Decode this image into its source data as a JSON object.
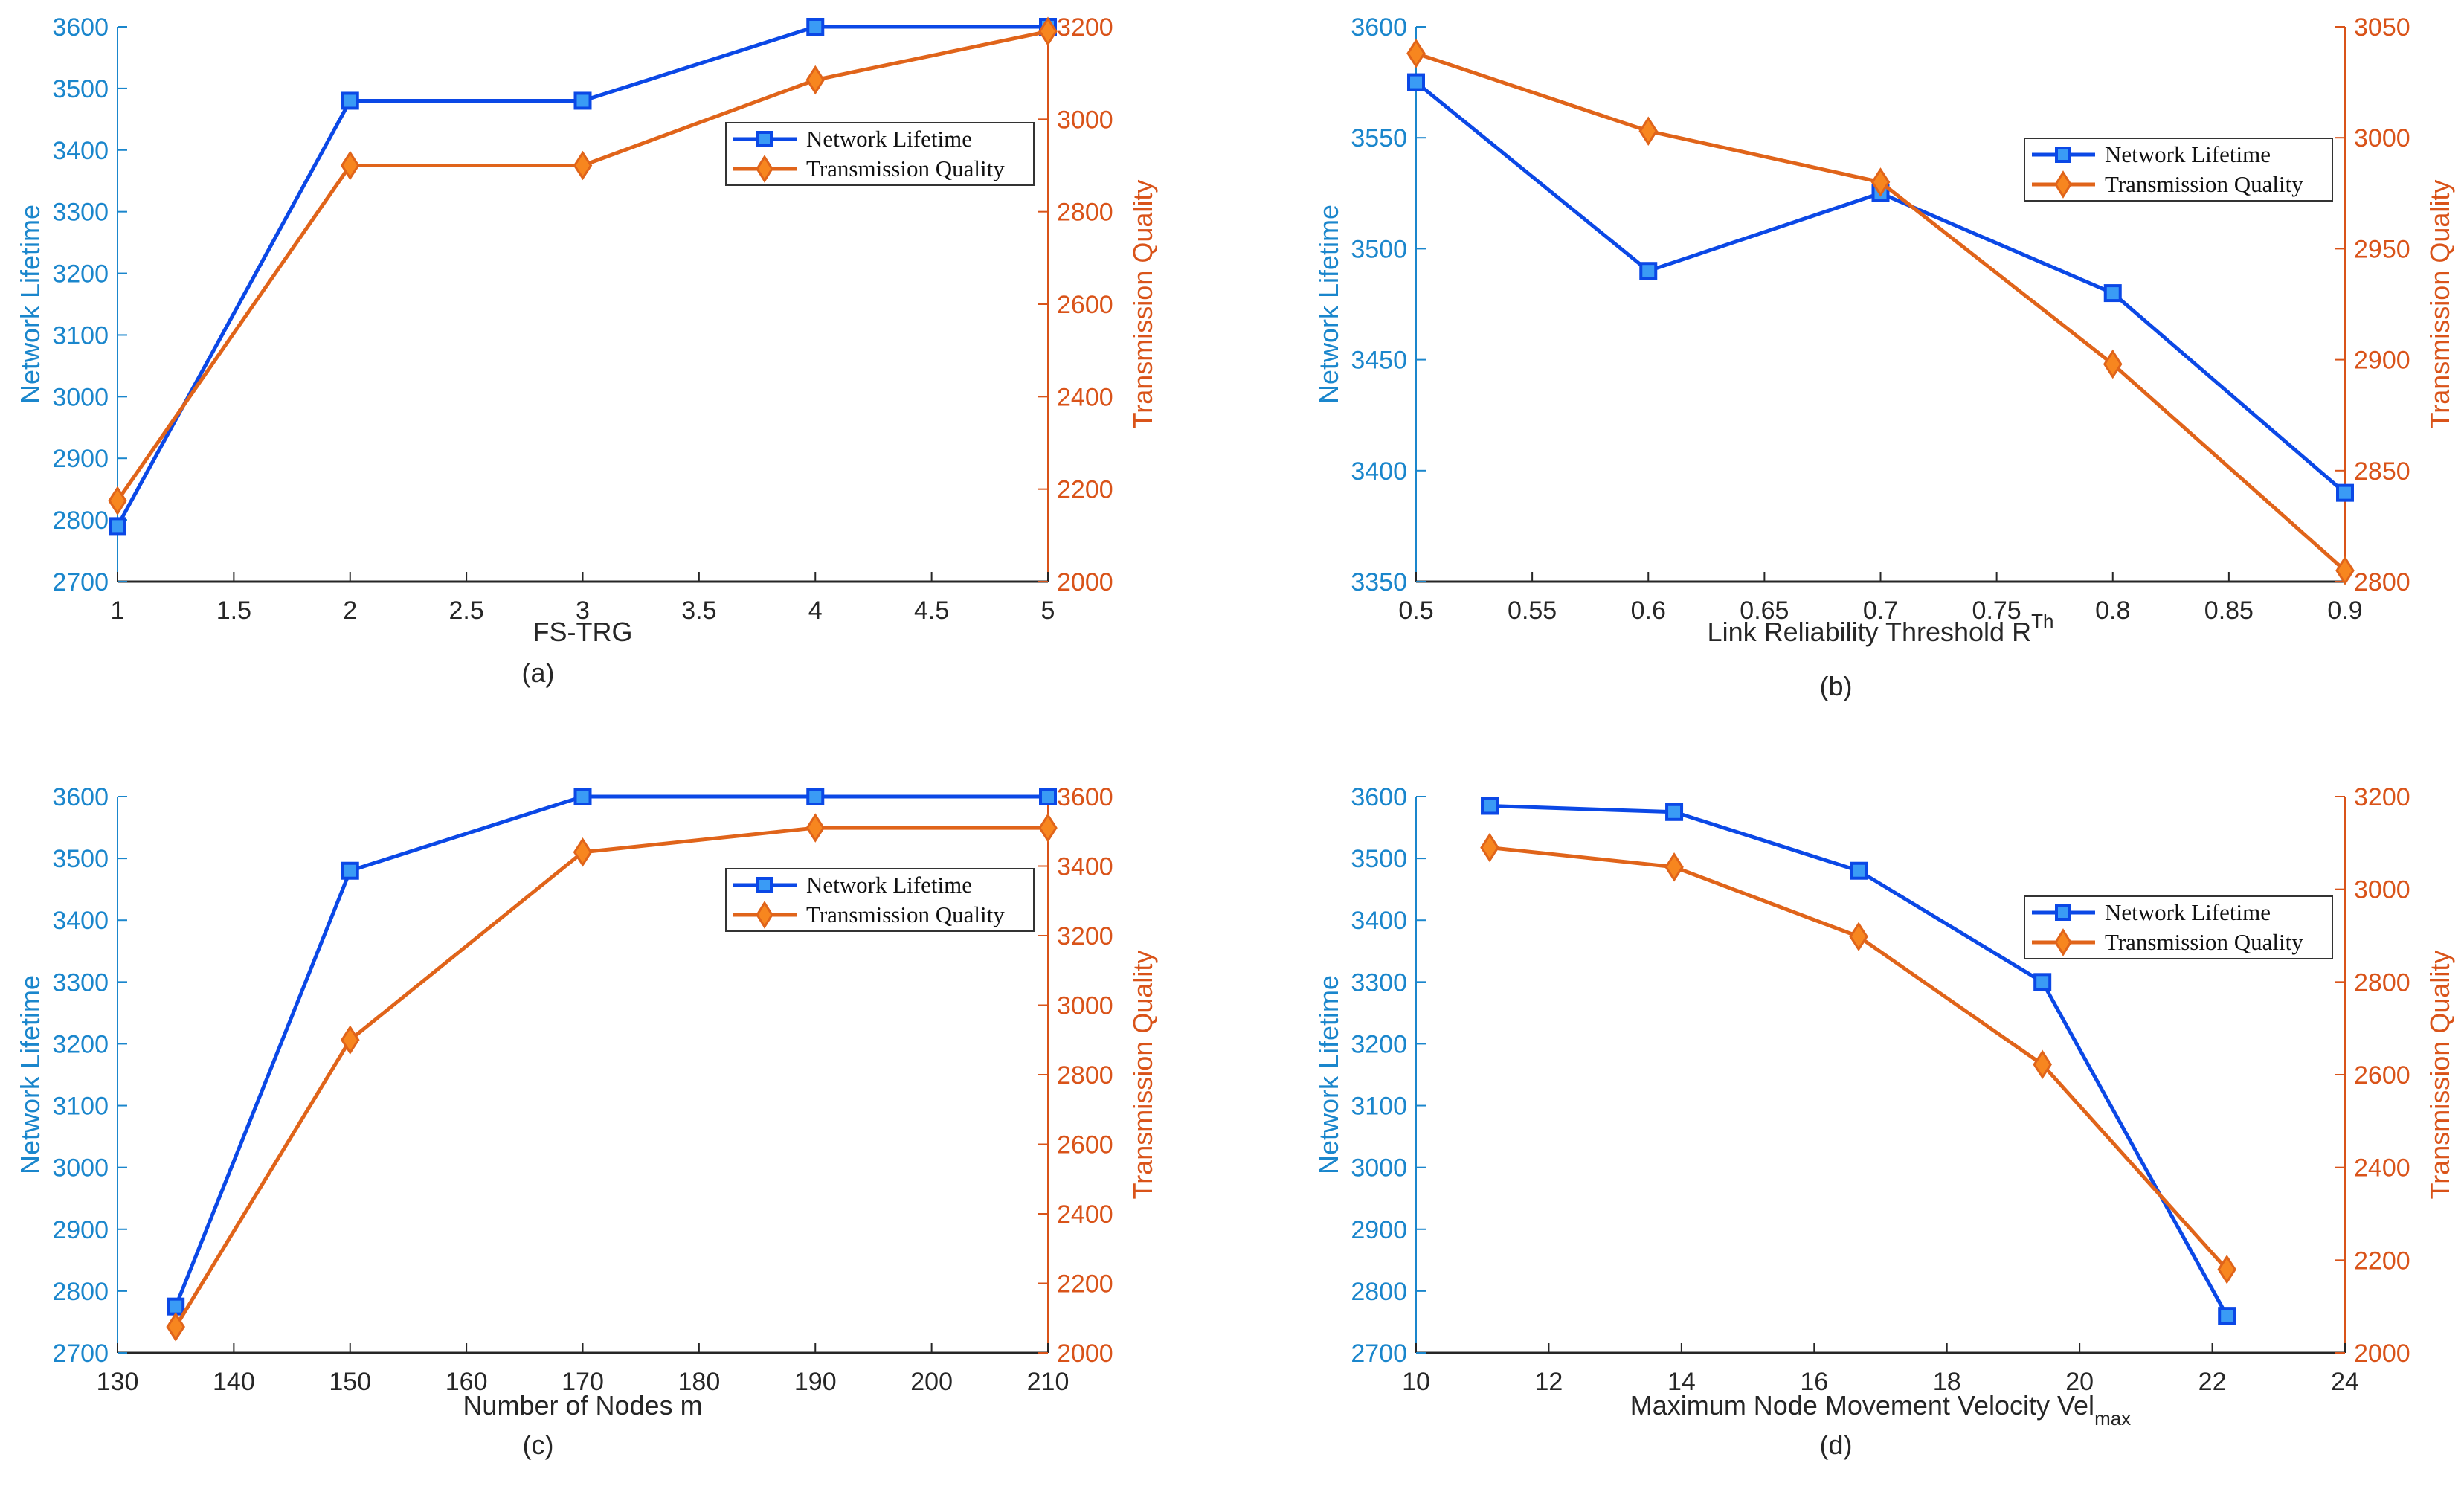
{
  "colors": {
    "left_axis": "#1a86cc",
    "right_axis": "#d95319",
    "nl_line": "#0b48e6",
    "nl_marker": "#3a9bf5",
    "tq_line": "#e0641a",
    "tq_marker": "#f7861f",
    "x_axis": "#262626"
  },
  "chart_data": [
    {
      "type": "line",
      "panel_label": "(a)",
      "xlabel": "FS-TRG",
      "xlabel_sup": "",
      "xlabel_sub": "",
      "ylabel_left": "Network Lifetime",
      "ylabel_right": "Transmission Quality",
      "xlim": [
        1,
        5
      ],
      "ylim_left": [
        2700,
        3600
      ],
      "ylim_right": [
        2000,
        3200
      ],
      "x_ticks": [
        "1",
        "1.5",
        "2",
        "2.5",
        "3",
        "3.5",
        "4",
        "4.5",
        "5"
      ],
      "y_left_ticks": [
        "2700",
        "2800",
        "2900",
        "3000",
        "3100",
        "3200",
        "3300",
        "3400",
        "3500",
        "3600"
      ],
      "y_right_ticks": [
        "2000",
        "2200",
        "2400",
        "2600",
        "2800",
        "3000",
        "3200"
      ],
      "legend": [
        "Network Lifetime",
        "Transmission Quality"
      ],
      "legend_position": "upper-right",
      "x": [
        1,
        2,
        3,
        4,
        5
      ],
      "series": [
        {
          "name": "Network Lifetime",
          "axis": "left",
          "marker": "square",
          "values": [
            2790,
            3480,
            3480,
            3600,
            3600
          ]
        },
        {
          "name": "Transmission Quality",
          "axis": "right",
          "marker": "diamond",
          "values": [
            2175,
            2900,
            2900,
            3085,
            3190
          ]
        }
      ]
    },
    {
      "type": "line",
      "panel_label": "(b)",
      "xlabel": "Link Reliability Threshold R",
      "xlabel_sup": "Th",
      "xlabel_sub": "",
      "ylabel_left": "Network Lifetime",
      "ylabel_right": "Transmission Quality",
      "xlim": [
        0.5,
        0.9
      ],
      "ylim_left": [
        3350,
        3600
      ],
      "ylim_right": [
        2800,
        3050
      ],
      "x_ticks": [
        "0.5",
        "0.55",
        "0.6",
        "0.65",
        "0.7",
        "0.75",
        "0.8",
        "0.85",
        "0.9"
      ],
      "y_left_ticks": [
        "3350",
        "3400",
        "3450",
        "3500",
        "3550",
        "3600"
      ],
      "y_right_ticks": [
        "2800",
        "2850",
        "2900",
        "2950",
        "3000",
        "3050"
      ],
      "legend": [
        "Network Lifetime",
        "Transmission Quality"
      ],
      "legend_position": "upper-right",
      "x": [
        0.5,
        0.6,
        0.7,
        0.8,
        0.9
      ],
      "series": [
        {
          "name": "Network Lifetime",
          "axis": "left",
          "marker": "square",
          "values": [
            3575,
            3490,
            3525,
            3480,
            3390
          ]
        },
        {
          "name": "Transmission Quality",
          "axis": "right",
          "marker": "diamond",
          "values": [
            3038,
            3003,
            2980,
            2898,
            2805
          ]
        }
      ]
    },
    {
      "type": "line",
      "panel_label": "(c)",
      "xlabel": "Number of Nodes m",
      "xlabel_sup": "",
      "xlabel_sub": "",
      "ylabel_left": "Network Lifetime",
      "ylabel_right": "Transmission Quality",
      "xlim": [
        130,
        210
      ],
      "ylim_left": [
        2700,
        3600
      ],
      "ylim_right": [
        2000,
        3600
      ],
      "x_ticks": [
        "130",
        "140",
        "150",
        "160",
        "170",
        "180",
        "190",
        "200",
        "210"
      ],
      "y_left_ticks": [
        "2700",
        "2800",
        "2900",
        "3000",
        "3100",
        "3200",
        "3300",
        "3400",
        "3500",
        "3600"
      ],
      "y_right_ticks": [
        "2000",
        "2200",
        "2400",
        "2600",
        "2800",
        "3000",
        "3200",
        "3400",
        "3600"
      ],
      "legend": [
        "Network Lifetime",
        "Transmission Quality"
      ],
      "legend_position": "upper-right",
      "x": [
        135,
        150,
        170,
        190,
        210
      ],
      "series": [
        {
          "name": "Network Lifetime",
          "axis": "left",
          "marker": "square",
          "values": [
            2775,
            3480,
            3600,
            3600,
            3600
          ]
        },
        {
          "name": "Transmission Quality",
          "axis": "right",
          "marker": "diamond",
          "values": [
            2075,
            2900,
            3440,
            3510,
            3510
          ]
        }
      ]
    },
    {
      "type": "line",
      "panel_label": "(d)",
      "xlabel": "Maximum Node Movement Velocity Vel",
      "xlabel_sup": "",
      "xlabel_sub": "max",
      "ylabel_left": "Network Lifetime",
      "ylabel_right": "Transmission Quality",
      "xlim": [
        10,
        24
      ],
      "ylim_left": [
        2700,
        3600
      ],
      "ylim_right": [
        2000,
        3200
      ],
      "x_ticks": [
        "10",
        "12",
        "14",
        "16",
        "18",
        "20",
        "22",
        "24"
      ],
      "y_left_ticks": [
        "2700",
        "2800",
        "2900",
        "3000",
        "3100",
        "3200",
        "3300",
        "3400",
        "3500",
        "3600"
      ],
      "y_right_ticks": [
        "2000",
        "2200",
        "2400",
        "2600",
        "2800",
        "3000",
        "3200"
      ],
      "legend": [
        "Network Lifetime",
        "Transmission Quality"
      ],
      "legend_position": "upper-right",
      "x": [
        11.11,
        13.89,
        16.67,
        19.44,
        22.22
      ],
      "series": [
        {
          "name": "Network Lifetime",
          "axis": "left",
          "marker": "square",
          "values": [
            3585,
            3575,
            3480,
            3300,
            2760
          ]
        },
        {
          "name": "Transmission Quality",
          "axis": "right",
          "marker": "diamond",
          "values": [
            3090,
            3048,
            2898,
            2622,
            2180
          ]
        }
      ]
    }
  ]
}
